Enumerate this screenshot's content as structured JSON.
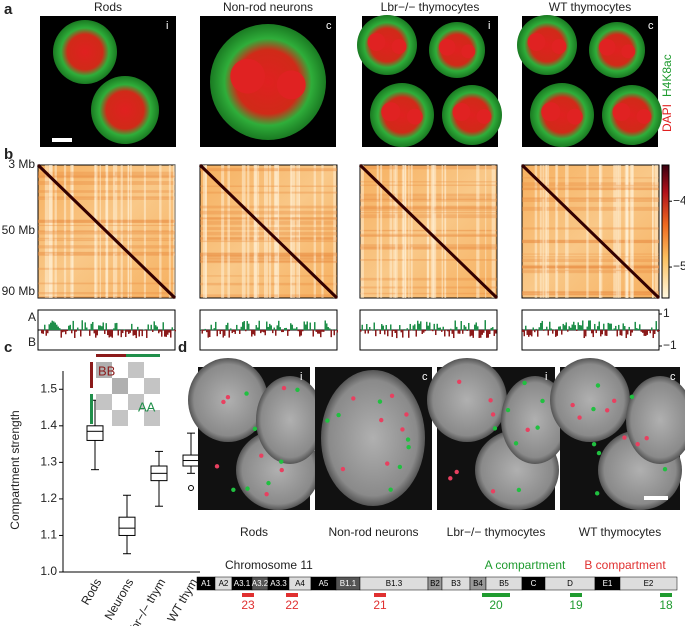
{
  "panel_labels": [
    "a",
    "b",
    "c",
    "d"
  ],
  "panel_a": {
    "titles": [
      "Rods",
      "Non-rod neurons",
      "Lbr−/− thymocytes",
      "WT thymocytes"
    ],
    "corner_marks": [
      "i",
      "c",
      "i",
      "c"
    ],
    "stain_labels": [
      "DAPI",
      "H4K8ac"
    ]
  },
  "panel_b": {
    "y_labels": [
      "3 Mb",
      "50 Mb",
      "90 Mb"
    ],
    "colorbar_lim": [
      -3.45,
      -5.47
    ],
    "colorbar_ticks": [
      {
        "value": -4,
        "label": "−4"
      },
      {
        "value": -5,
        "label": "−5"
      }
    ],
    "track_labels": [
      "A",
      "B"
    ],
    "track_ticks": [
      1,
      {
        "value": -1,
        "label": "−1"
      }
    ]
  },
  "chart_data": {
    "type": "box",
    "y_label": "Compartment strength",
    "categories": [
      "Rods",
      "Neurons",
      "Lbr−/− thym",
      "WT thym"
    ],
    "whisker_low": [
      1.28,
      1.05,
      1.18,
      1.27
    ],
    "q1": [
      1.36,
      1.1,
      1.25,
      1.29
    ],
    "median": [
      1.385,
      1.12,
      1.27,
      1.305
    ],
    "q3": [
      1.4,
      1.15,
      1.29,
      1.32
    ],
    "whisker_high": [
      1.47,
      1.21,
      1.33,
      1.38
    ],
    "outliers": [
      [],
      [],
      [],
      [
        1.23
      ]
    ],
    "ylim": [
      1.0,
      1.55
    ],
    "yticks": [
      {
        "value": 1,
        "label": "1.0"
      },
      1.1,
      1.2,
      1.3,
      1.4,
      1.5
    ],
    "inset_labels": [
      "BB",
      "AA"
    ]
  },
  "panel_d": {
    "titles": [
      "Rods",
      "Non-rod neurons",
      "Lbr−/− thymocytes",
      "WT thymocytes"
    ],
    "corner_marks": [
      "i",
      "c",
      "i",
      "c"
    ],
    "chromosome": "Chromosome 11",
    "legend": [
      "A compartment",
      "B compartment"
    ],
    "bands": [
      "A1",
      "A2",
      "A3.1",
      "A3.2",
      "A3.3",
      "A4",
      "A5",
      "B1.1",
      "B1.3",
      "B2",
      "B3",
      "B4",
      "B5",
      "C",
      "D",
      "E1",
      "E2"
    ],
    "probes": [
      "23",
      "22",
      "21",
      "20",
      "19",
      "18"
    ]
  }
}
